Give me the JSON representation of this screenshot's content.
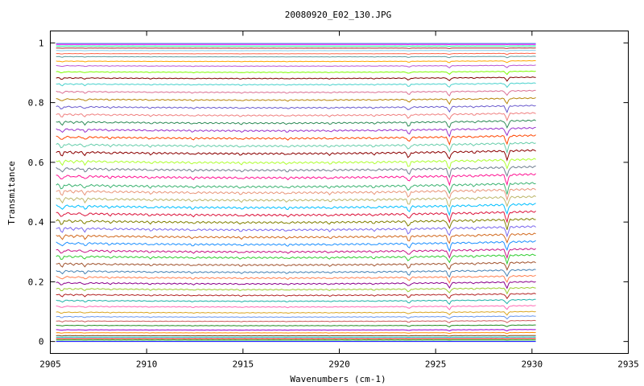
{
  "chart_data": {
    "type": "line",
    "title": "20080920_E02_130.JPG",
    "xlabel": "Wavenumbers (cm-1)",
    "ylabel": "Transmitance",
    "xlim": [
      2905,
      2935
    ],
    "ylim": [
      -0.04,
      1.04
    ],
    "x_ticks": [
      "2905",
      "2910",
      "2915",
      "2920",
      "2925",
      "2930",
      "2935"
    ],
    "y_ticks": [
      "0",
      "0.2",
      "0.4",
      "0.6",
      "0.8",
      "1"
    ],
    "grid": false,
    "legend": "none",
    "x_range_data": [
      2905.3,
      2930.2
    ],
    "absorption_lines_cm1": [
      2905.6,
      2906.2,
      2906.8,
      2908.1,
      2910.2,
      2912.4,
      2914.9,
      2917.3,
      2919.5,
      2921.8,
      2923.6,
      2925.7,
      2927.0,
      2928.7
    ],
    "series_levels": [
      0.0,
      0.005,
      0.01,
      0.015,
      0.02,
      0.03,
      0.04,
      0.055,
      0.07,
      0.085,
      0.1,
      0.12,
      0.14,
      0.16,
      0.18,
      0.2,
      0.22,
      0.24,
      0.265,
      0.29,
      0.31,
      0.335,
      0.36,
      0.385,
      0.41,
      0.435,
      0.46,
      0.485,
      0.51,
      0.53,
      0.56,
      0.585,
      0.61,
      0.64,
      0.665,
      0.69,
      0.715,
      0.74,
      0.765,
      0.79,
      0.815,
      0.84,
      0.865,
      0.885,
      0.905,
      0.925,
      0.94,
      0.955,
      0.965,
      0.975,
      0.983,
      0.99,
      0.995,
      0.998
    ],
    "series_colors": [
      "#0000ff",
      "#00aa00",
      "#ff0000",
      "#00ced1",
      "#8b4513",
      "#ff8c00",
      "#9400d3",
      "#228b22",
      "#cd5c5c",
      "#6495ed",
      "#daa520",
      "#ff69b4",
      "#20b2aa",
      "#b22222",
      "#9acd32",
      "#8b008b",
      "#ff7f50",
      "#4682b4",
      "#a0522d",
      "#32cd32",
      "#c71585",
      "#1e90ff",
      "#d2691e",
      "#7b68ee",
      "#808000",
      "#dc143c",
      "#00bfff",
      "#bdb76b",
      "#e9967a",
      "#3cb371",
      "#ff1493",
      "#708090",
      "#adff2f",
      "#8b0000",
      "#66cdaa",
      "#ff4500",
      "#9932cc",
      "#2e8b57",
      "#f08080",
      "#6a5acd",
      "#b8860b",
      "#db7093",
      "#48d1cc",
      "#800000",
      "#7cfc00",
      "#ba55d3",
      "#ffa500",
      "#5f9ea0",
      "#ff6347",
      "#87ceeb",
      "#a52a2a",
      "#00fa9a",
      "#ff00ff",
      "#4169e1"
    ]
  }
}
